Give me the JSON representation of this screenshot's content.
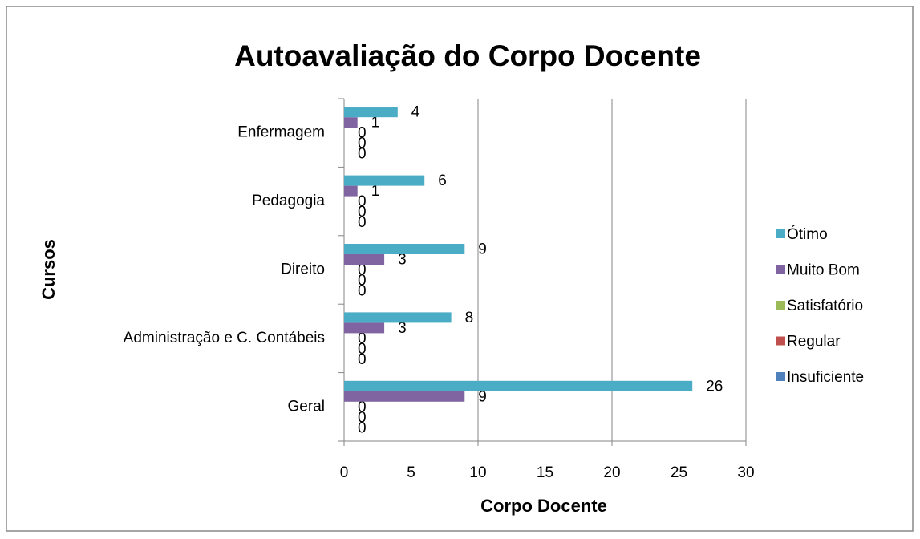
{
  "chart_data": {
    "type": "hbar",
    "title": "Autoavaliação do Corpo Docente",
    "x_label": "Corpo Docente",
    "y_label": "Cursos",
    "categories": [
      "Geral",
      "Administração e C. Contábeis",
      "Direito",
      "Pedagogia",
      "Enfermagem"
    ],
    "series": [
      {
        "name": "Insuficiente",
        "color": "#4f81bd",
        "values": [
          0,
          0,
          0,
          0,
          0
        ]
      },
      {
        "name": "Regular",
        "color": "#c0504d",
        "values": [
          0,
          0,
          0,
          0,
          0
        ]
      },
      {
        "name": "Satisfatório",
        "color": "#9bbb59",
        "values": [
          0,
          0,
          0,
          0,
          0
        ]
      },
      {
        "name": "Muito Bom",
        "color": "#8064a2",
        "values": [
          9,
          3,
          3,
          1,
          1
        ]
      },
      {
        "name": "Ótimo",
        "color": "#4bacc6",
        "values": [
          26,
          8,
          9,
          6,
          4
        ]
      }
    ],
    "xlim": [
      0,
      30
    ],
    "xticks": [
      0,
      5,
      10,
      15,
      20,
      25,
      30
    ],
    "grid": true,
    "legend": "right"
  }
}
